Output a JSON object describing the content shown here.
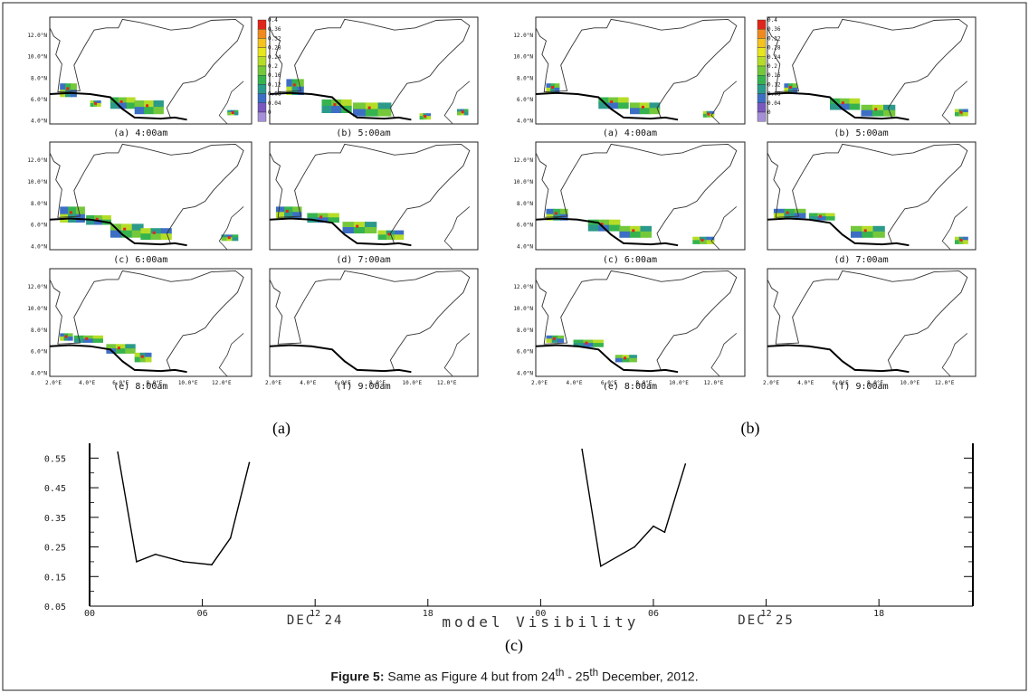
{
  "figure": {
    "caption_bold": "Figure 5:",
    "caption_parts": [
      "Same as Figure 4 but from 24",
      "th",
      " - 25",
      "th",
      " December, 2012."
    ],
    "group_labels": [
      "(a)",
      "(b)",
      "(c)"
    ]
  },
  "colorbar": {
    "ticks": [
      "0.4",
      "0.36",
      "0.32",
      "0.28",
      "0.24",
      "0.2",
      "0.16",
      "0.12",
      "0.08",
      "0.04",
      "0"
    ],
    "colors": [
      "#e0261b",
      "#f08a1f",
      "#f5c21f",
      "#e8e61c",
      "#b5dd28",
      "#74c83a",
      "#36b34f",
      "#2b9a8a",
      "#3c6fc4",
      "#7a58c0",
      "#a58fd8"
    ]
  },
  "maps": {
    "lat_ticks": [
      "12.0°N",
      "10.0°N",
      "8.0°N",
      "6.0°N",
      "4.0°N"
    ],
    "lon_ticks": [
      "2.0°E",
      "4.0°E",
      "6.0°E",
      "8.0°E",
      "10.0°E",
      "12.0°E"
    ],
    "panel_labels": [
      "(a)  4:00am",
      "(b)  5:00am",
      "(c)  6:00am",
      "(d)  7:00am",
      "(e)  8:00am",
      "(f)  9:00am"
    ]
  },
  "chart_data": {
    "type": "line",
    "xlabel": "model Visibility",
    "x_tick_labels": [
      "00",
      "06",
      "12",
      "18",
      "00",
      "06",
      "12",
      "18"
    ],
    "x_tick_hours": [
      0,
      6,
      12,
      18,
      24,
      30,
      36,
      42
    ],
    "day_labels": [
      "DEC 24",
      "DEC 25"
    ],
    "day_label_hours": [
      12,
      36
    ],
    "y_tick_labels": [
      "0.55",
      "0.45",
      "0.35",
      "0.25",
      "0.15",
      "0.05"
    ],
    "yticks": [
      0.55,
      0.45,
      0.35,
      0.25,
      0.15,
      0.05
    ],
    "xlim": [
      0,
      47
    ],
    "ylim": [
      0.05,
      0.6
    ],
    "series": [
      {
        "segments": [
          {
            "x": [
              1.5,
              2.5,
              3.5,
              5,
              6.5,
              7.5,
              8.5
            ],
            "y": [
              0.57,
              0.2,
              0.225,
              0.2,
              0.19,
              0.28,
              0.535
            ]
          },
          {
            "x": [
              26.2,
              27.2,
              29,
              30,
              30.6,
              31.7
            ],
            "y": [
              0.58,
              0.185,
              0.25,
              0.32,
              0.3,
              0.53
            ]
          }
        ]
      }
    ]
  }
}
